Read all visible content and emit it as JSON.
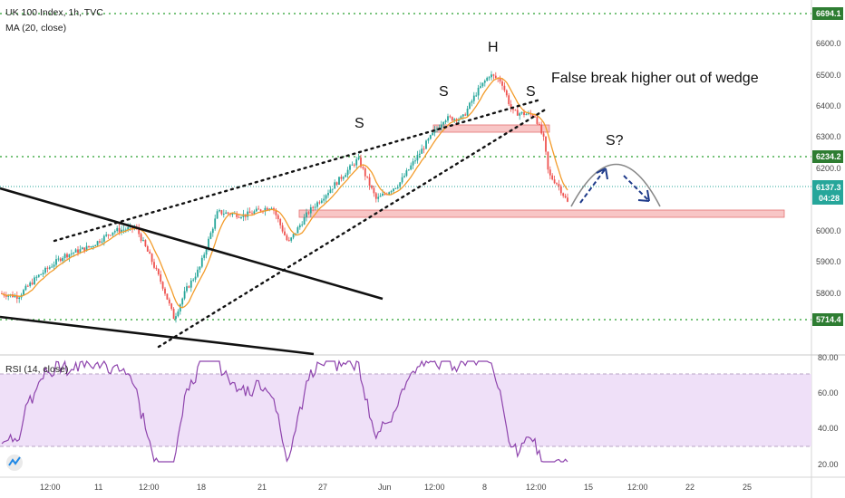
{
  "header": {
    "symbol": "UK 100 Index, 1h, TVC",
    "ma_label": "MA (20, close)",
    "rsi_label": "RSI (14, close)"
  },
  "chart_data": {
    "type": "candlestick",
    "y_ticks": [
      "6600.0",
      "6500.0",
      "6400.0",
      "6300.0",
      "6200.0",
      "6000.0",
      "5900.0",
      "5800.0"
    ],
    "ylim": [
      5650,
      6720
    ],
    "x_ticks": [
      "12:00",
      "11",
      "12:00",
      "18",
      "21",
      "27",
      "Jun",
      "12:00",
      "8",
      "12:00",
      "15",
      "12:00",
      "22",
      "25"
    ],
    "price_tags": [
      {
        "value": "6694.1",
        "style": "dotted-green-line"
      },
      {
        "value": "6234.2",
        "style": "dotted-green-line"
      },
      {
        "value": "6137.3",
        "style": "dotted-teal-line"
      },
      {
        "value": "04:28",
        "style": "countdown"
      },
      {
        "value": "5714.4",
        "style": "dotted-green-line"
      }
    ],
    "annotations": [
      "H",
      "S",
      "S",
      "S",
      "False break higher out of wedge",
      "S?"
    ],
    "rsi": {
      "y_ticks": [
        "80.00",
        "60.00",
        "40.00",
        "20.00"
      ],
      "ylim": [
        15,
        82
      ],
      "band": [
        30,
        70
      ]
    },
    "colors": {
      "up": "#26a69a",
      "down": "#ef5350",
      "ma": "#f39c2b",
      "rsi": "#8e44ad",
      "band": "#efe0f8",
      "zone": "#f8c6c6"
    }
  }
}
